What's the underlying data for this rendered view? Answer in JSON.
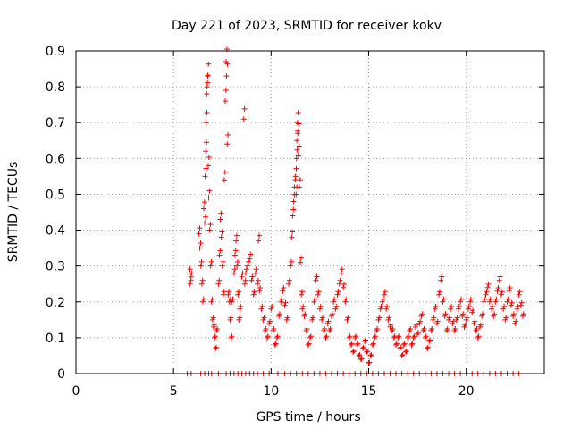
{
  "chart_data": {
    "type": "scatter",
    "title": "Day 221 of 2023, SRMTID for receiver kokv",
    "xlabel": "GPS time / hours",
    "ylabel": "SRMTID / TECUs",
    "xlim": [
      0,
      24
    ],
    "ylim": [
      0,
      0.9
    ],
    "xticks": [
      0,
      5,
      10,
      15,
      20
    ],
    "xtick_labels": [
      "0",
      "5",
      "10",
      "15",
      "20"
    ],
    "yticks": [
      0,
      0.1,
      0.2,
      0.3,
      0.4,
      0.5,
      0.6,
      0.7,
      0.8,
      0.9
    ],
    "ytick_labels": [
      "0",
      "0.1",
      "0.2",
      "0.3",
      "0.4",
      "0.5",
      "0.6",
      "0.7",
      "0.8",
      "0.9"
    ],
    "grid": true,
    "marker": "+",
    "color": "#ff0000",
    "series": [
      {
        "name": "SRMTID",
        "points": [
          [
            5.8,
            0.28
          ],
          [
            5.85,
            0.25
          ],
          [
            5.9,
            0.27
          ],
          [
            6.3,
            0.39
          ],
          [
            6.35,
            0.35
          ],
          [
            6.4,
            0.3
          ],
          [
            6.45,
            0.25
          ],
          [
            6.5,
            0.2
          ],
          [
            6.55,
            0.46
          ],
          [
            6.6,
            0.42
          ],
          [
            6.62,
            0.55
          ],
          [
            6.65,
            0.62
          ],
          [
            6.67,
            0.7
          ],
          [
            6.7,
            0.78
          ],
          [
            6.72,
            0.8
          ],
          [
            6.75,
            0.83
          ],
          [
            6.78,
            0.58
          ],
          [
            6.8,
            0.49
          ],
          [
            6.85,
            0.4
          ],
          [
            6.9,
            0.3
          ],
          [
            6.95,
            0.2
          ],
          [
            7.0,
            0.15
          ],
          [
            7.05,
            0.13
          ],
          [
            7.1,
            0.1
          ],
          [
            7.15,
            0.07
          ],
          [
            7.2,
            0.12
          ],
          [
            7.3,
            0.25
          ],
          [
            7.35,
            0.33
          ],
          [
            7.4,
            0.43
          ],
          [
            7.45,
            0.38
          ],
          [
            7.5,
            0.3
          ],
          [
            7.55,
            0.22
          ],
          [
            7.6,
            0.54
          ],
          [
            7.65,
            0.76
          ],
          [
            7.7,
            0.87
          ],
          [
            7.72,
            0.83
          ],
          [
            7.75,
            0.64
          ],
          [
            7.8,
            0.22
          ],
          [
            7.85,
            0.2
          ],
          [
            7.9,
            0.15
          ],
          [
            7.95,
            0.1
          ],
          [
            8.0,
            0.2
          ],
          [
            8.1,
            0.28
          ],
          [
            8.15,
            0.33
          ],
          [
            8.2,
            0.37
          ],
          [
            8.25,
            0.3
          ],
          [
            8.3,
            0.22
          ],
          [
            8.35,
            0.15
          ],
          [
            8.4,
            0.18
          ],
          [
            8.5,
            0.27
          ],
          [
            8.6,
            0.71
          ],
          [
            8.65,
            0.25
          ],
          [
            8.7,
            0.28
          ],
          [
            8.8,
            0.3
          ],
          [
            8.9,
            0.32
          ],
          [
            9.0,
            0.26
          ],
          [
            9.1,
            0.22
          ],
          [
            9.2,
            0.28
          ],
          [
            9.3,
            0.25
          ],
          [
            9.35,
            0.37
          ],
          [
            9.4,
            0.23
          ],
          [
            9.5,
            0.18
          ],
          [
            9.6,
            0.15
          ],
          [
            9.7,
            0.12
          ],
          [
            9.8,
            0.1
          ],
          [
            9.9,
            0.14
          ],
          [
            10.0,
            0.18
          ],
          [
            10.1,
            0.12
          ],
          [
            10.2,
            0.08
          ],
          [
            10.3,
            0.1
          ],
          [
            10.4,
            0.16
          ],
          [
            10.5,
            0.2
          ],
          [
            10.6,
            0.23
          ],
          [
            10.7,
            0.19
          ],
          [
            10.8,
            0.15
          ],
          [
            10.9,
            0.25
          ],
          [
            11.0,
            0.3
          ],
          [
            11.05,
            0.38
          ],
          [
            11.1,
            0.44
          ],
          [
            11.15,
            0.48
          ],
          [
            11.2,
            0.52
          ],
          [
            11.25,
            0.55
          ],
          [
            11.28,
            0.5
          ],
          [
            11.3,
            0.6
          ],
          [
            11.32,
            0.65
          ],
          [
            11.35,
            0.7
          ],
          [
            11.37,
            0.67
          ],
          [
            11.4,
            0.61
          ],
          [
            11.45,
            0.52
          ],
          [
            11.5,
            0.31
          ],
          [
            11.55,
            0.22
          ],
          [
            11.6,
            0.18
          ],
          [
            11.7,
            0.16
          ],
          [
            11.8,
            0.12
          ],
          [
            11.9,
            0.08
          ],
          [
            12.0,
            0.1
          ],
          [
            12.1,
            0.15
          ],
          [
            12.2,
            0.2
          ],
          [
            12.3,
            0.26
          ],
          [
            12.4,
            0.22
          ],
          [
            12.5,
            0.18
          ],
          [
            12.6,
            0.15
          ],
          [
            12.7,
            0.12
          ],
          [
            12.8,
            0.1
          ],
          [
            12.9,
            0.14
          ],
          [
            13.0,
            0.12
          ],
          [
            13.1,
            0.16
          ],
          [
            13.2,
            0.2
          ],
          [
            13.3,
            0.18
          ],
          [
            13.4,
            0.22
          ],
          [
            13.5,
            0.25
          ],
          [
            13.6,
            0.28
          ],
          [
            13.7,
            0.24
          ],
          [
            13.8,
            0.2
          ],
          [
            13.9,
            0.15
          ],
          [
            14.0,
            0.1
          ],
          [
            14.1,
            0.08
          ],
          [
            14.2,
            0.06
          ],
          [
            14.3,
            0.1
          ],
          [
            14.4,
            0.08
          ],
          [
            14.5,
            0.05
          ],
          [
            14.6,
            0.04
          ],
          [
            14.7,
            0.07
          ],
          [
            14.8,
            0.09
          ],
          [
            14.9,
            0.06
          ],
          [
            15.0,
            0.03
          ],
          [
            15.1,
            0.05
          ],
          [
            15.2,
            0.08
          ],
          [
            15.3,
            0.1
          ],
          [
            15.4,
            0.12
          ],
          [
            15.5,
            0.15
          ],
          [
            15.6,
            0.18
          ],
          [
            15.7,
            0.2
          ],
          [
            15.8,
            0.22
          ],
          [
            15.9,
            0.18
          ],
          [
            16.0,
            0.15
          ],
          [
            16.1,
            0.13
          ],
          [
            16.2,
            0.12
          ],
          [
            16.3,
            0.1
          ],
          [
            16.4,
            0.08
          ],
          [
            16.5,
            0.1
          ],
          [
            16.6,
            0.07
          ],
          [
            16.7,
            0.05
          ],
          [
            16.8,
            0.08
          ],
          [
            16.9,
            0.06
          ],
          [
            17.0,
            0.1
          ],
          [
            17.1,
            0.12
          ],
          [
            17.2,
            0.08
          ],
          [
            17.3,
            0.1
          ],
          [
            17.4,
            0.13
          ],
          [
            17.5,
            0.11
          ],
          [
            17.6,
            0.14
          ],
          [
            17.7,
            0.16
          ],
          [
            17.8,
            0.12
          ],
          [
            17.9,
            0.1
          ],
          [
            18.0,
            0.07
          ],
          [
            18.1,
            0.09
          ],
          [
            18.2,
            0.12
          ],
          [
            18.3,
            0.15
          ],
          [
            18.4,
            0.18
          ],
          [
            18.5,
            0.14
          ],
          [
            18.6,
            0.22
          ],
          [
            18.7,
            0.26
          ],
          [
            18.8,
            0.2
          ],
          [
            18.9,
            0.16
          ],
          [
            19.0,
            0.12
          ],
          [
            19.1,
            0.15
          ],
          [
            19.2,
            0.18
          ],
          [
            19.3,
            0.14
          ],
          [
            19.4,
            0.12
          ],
          [
            19.5,
            0.15
          ],
          [
            19.6,
            0.18
          ],
          [
            19.7,
            0.2
          ],
          [
            19.8,
            0.16
          ],
          [
            19.9,
            0.13
          ],
          [
            20.0,
            0.15
          ],
          [
            20.1,
            0.18
          ],
          [
            20.2,
            0.2
          ],
          [
            20.3,
            0.17
          ],
          [
            20.4,
            0.14
          ],
          [
            20.5,
            0.12
          ],
          [
            20.6,
            0.1
          ],
          [
            20.7,
            0.13
          ],
          [
            20.8,
            0.16
          ],
          [
            20.9,
            0.2
          ],
          [
            21.0,
            0.22
          ],
          [
            21.1,
            0.24
          ],
          [
            21.2,
            0.2
          ],
          [
            21.3,
            0.18
          ],
          [
            21.4,
            0.16
          ],
          [
            21.5,
            0.2
          ],
          [
            21.6,
            0.23
          ],
          [
            21.7,
            0.26
          ],
          [
            21.8,
            0.22
          ],
          [
            21.9,
            0.18
          ],
          [
            22.0,
            0.15
          ],
          [
            22.1,
            0.2
          ],
          [
            22.2,
            0.23
          ],
          [
            22.3,
            0.19
          ],
          [
            22.4,
            0.16
          ],
          [
            22.5,
            0.14
          ],
          [
            22.6,
            0.18
          ],
          [
            22.7,
            0.22
          ],
          [
            22.8,
            0.19
          ],
          [
            22.9,
            0.16
          ]
        ],
        "zeros": [
          5.7,
          5.9,
          6.4,
          6.6,
          6.8,
          6.95,
          7.3,
          7.7,
          7.9,
          8.1,
          8.3,
          8.5,
          8.7,
          8.9,
          9.1,
          9.3,
          9.6,
          9.9,
          10.1,
          10.35,
          10.7,
          11.0,
          11.3,
          11.6,
          11.9,
          12.2,
          12.5,
          12.8,
          13.1,
          13.4,
          13.7,
          14.0,
          14.3,
          14.6,
          14.9,
          15.2,
          15.5,
          15.8,
          16.1,
          16.4,
          16.7,
          17.0,
          17.3,
          17.6,
          17.9,
          18.2,
          18.5,
          18.8,
          19.1,
          19.4,
          19.7,
          20.0,
          20.3,
          20.6,
          20.9,
          21.2,
          21.5,
          21.8,
          22.1,
          22.4,
          22.7
        ]
      }
    ]
  }
}
